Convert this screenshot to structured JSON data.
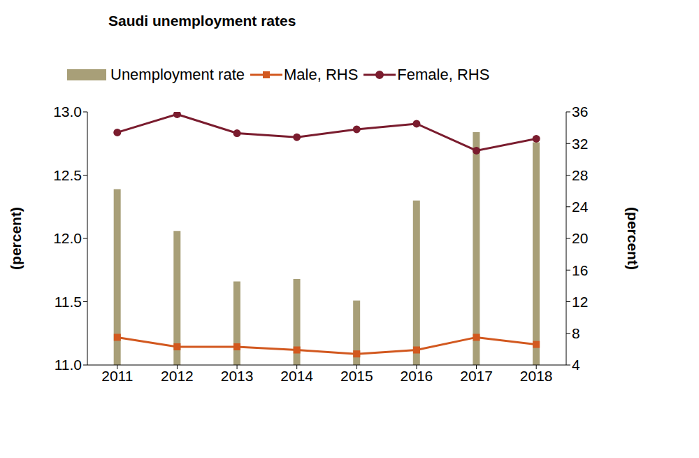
{
  "chart_data": {
    "type": "bar",
    "title": "Saudi unemployment rates",
    "categories": [
      "2011",
      "2012",
      "2013",
      "2014",
      "2015",
      "2016",
      "2017",
      "2018"
    ],
    "series": [
      {
        "name": "Unemployment rate",
        "type": "bar",
        "color": "#a89f78",
        "values": [
          12.39,
          12.06,
          11.66,
          11.68,
          11.51,
          12.3,
          12.84,
          12.76
        ]
      },
      {
        "name": "Male, RHS",
        "type": "line",
        "axis": "y2",
        "color": "#d2581f",
        "marker": "square",
        "values": [
          7.5,
          6.3,
          6.3,
          5.9,
          5.4,
          5.9,
          7.5,
          6.6
        ]
      },
      {
        "name": "Female, RHS",
        "type": "line",
        "axis": "y2",
        "color": "#7a1c2e",
        "marker": "circle",
        "values": [
          33.4,
          35.7,
          33.3,
          32.8,
          33.8,
          34.5,
          31.1,
          32.6
        ]
      }
    ],
    "ylabel": "(percent)",
    "y2label": "(percent)",
    "ylim": [
      11,
      13
    ],
    "yticks": [
      {
        "value": 11,
        "label": "11.0"
      },
      11.5,
      {
        "value": 12,
        "label": "12.0"
      },
      12.5,
      {
        "value": 13,
        "label": "13.0"
      }
    ],
    "y2lim": [
      4,
      36
    ],
    "y2ticks": [
      4,
      8,
      12,
      16,
      20,
      24,
      28,
      32,
      36
    ],
    "grid": false,
    "legend": "top"
  }
}
